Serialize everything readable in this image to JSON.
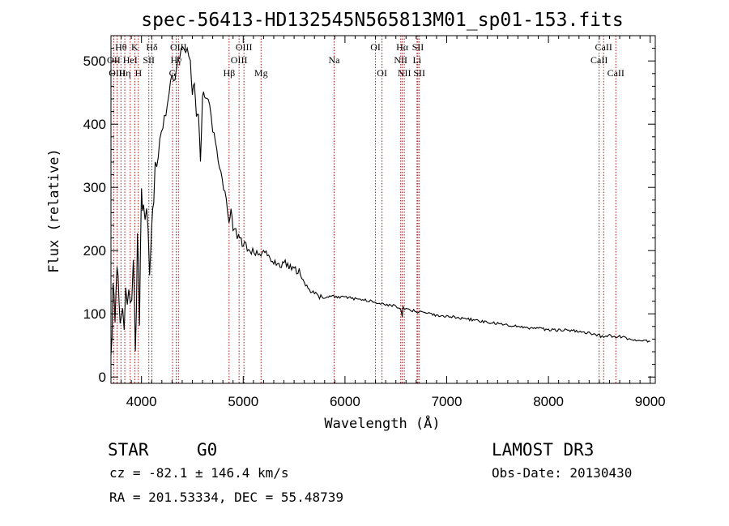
{
  "chart_data": {
    "type": "line",
    "title": "spec-56413-HD132545N565813M01_sp01-153.fits",
    "xlabel": "Wavelength (Å)",
    "ylabel": "Flux (relative)",
    "xlim": [
      3700,
      9050
    ],
    "ylim": [
      -10,
      540
    ],
    "xticks": [
      4000,
      5000,
      6000,
      7000,
      8000,
      9000
    ],
    "yticks": [
      0,
      100,
      200,
      300,
      400,
      500
    ],
    "series": [
      {
        "name": "flux",
        "x": [
          3700,
          3720,
          3740,
          3760,
          3780,
          3800,
          3830,
          3860,
          3890,
          3920,
          3940,
          3960,
          3980,
          4000,
          4020,
          4050,
          4080,
          4100,
          4120,
          4150,
          4180,
          4210,
          4240,
          4270,
          4300,
          4330,
          4360,
          4390,
          4420,
          4450,
          4480,
          4500,
          4520,
          4540,
          4560,
          4580,
          4600,
          4620,
          4640,
          4670,
          4700,
          4740,
          4780,
          4820,
          4860,
          4880,
          4900,
          4940,
          4980,
          5000,
          5040,
          5080,
          5120,
          5160,
          5200,
          5250,
          5300,
          5350,
          5400,
          5450,
          5500,
          5550,
          5600,
          5650,
          5700,
          5750,
          5800,
          5850,
          5900,
          5950,
          6000,
          6100,
          6200,
          6300,
          6400,
          6500,
          6550,
          6563,
          6570,
          6600,
          6700,
          6800,
          6900,
          7000,
          7200,
          7400,
          7600,
          7800,
          8000,
          8200,
          8400,
          8500,
          8542,
          8600,
          8662,
          8700,
          8800,
          8900,
          9000
        ],
        "y": [
          20,
          150,
          60,
          170,
          100,
          120,
          90,
          140,
          110,
          160,
          40,
          200,
          90,
          280,
          295,
          240,
          180,
          220,
          300,
          330,
          370,
          395,
          420,
          450,
          480,
          470,
          500,
          520,
          515,
          520,
          500,
          450,
          460,
          410,
          420,
          340,
          450,
          440,
          440,
          425,
          390,
          360,
          320,
          290,
          250,
          265,
          235,
          225,
          215,
          212,
          205,
          200,
          195,
          192,
          200,
          188,
          185,
          178,
          180,
          175,
          170,
          165,
          150,
          140,
          132,
          128,
          125,
          128,
          127,
          126,
          126,
          124,
          122,
          118,
          115,
          112,
          108,
          95,
          110,
          108,
          104,
          101,
          98,
          96,
          92,
          87,
          82,
          78,
          75,
          74,
          70,
          66,
          62,
          66,
          63,
          64,
          60,
          58,
          56
        ]
      }
    ],
    "spectral_lines": [
      {
        "label": "Hθ",
        "x": 3798,
        "row": 0
      },
      {
        "label": "OII",
        "x": 3727,
        "row": 1
      },
      {
        "label": "OIII",
        "x": 3760,
        "row": 2
      },
      {
        "label": "Hη",
        "x": 3836,
        "row": 2
      },
      {
        "label": "K",
        "x": 3934,
        "row": 0
      },
      {
        "label": "HeI",
        "x": 3889,
        "row": 1
      },
      {
        "label": "H",
        "x": 3969,
        "row": 2
      },
      {
        "label": "SII",
        "x": 4072,
        "row": 1
      },
      {
        "label": "Hδ",
        "x": 4102,
        "row": 0
      },
      {
        "label": "OIII",
        "x": 4363,
        "row": 0
      },
      {
        "label": "Hγ",
        "x": 4341,
        "row": 1
      },
      {
        "label": "G",
        "x": 4305,
        "row": 2
      },
      {
        "label": "Hβ",
        "x": 4861,
        "row": 2
      },
      {
        "label": "OIII",
        "x": 5007,
        "row": 0
      },
      {
        "label": "OIII",
        "x": 4959,
        "row": 1
      },
      {
        "label": "Mg",
        "x": 5175,
        "row": 2
      },
      {
        "label": "Na",
        "x": 5893,
        "row": 1
      },
      {
        "label": "OI",
        "x": 6300,
        "row": 0
      },
      {
        "label": "OI",
        "x": 6364,
        "row": 2
      },
      {
        "label": "Hα",
        "x": 6563,
        "row": 0
      },
      {
        "label": "NII",
        "x": 6548,
        "row": 1
      },
      {
        "label": "NII",
        "x": 6583,
        "row": 2
      },
      {
        "label": "SII",
        "x": 6717,
        "row": 0
      },
      {
        "label": "Li",
        "x": 6708,
        "row": 1
      },
      {
        "label": "SII",
        "x": 6731,
        "row": 2
      },
      {
        "label": "CaII",
        "x": 8542,
        "row": 0
      },
      {
        "label": "CaII",
        "x": 8498,
        "row": 1
      },
      {
        "label": "CaII",
        "x": 8662,
        "row": 2
      }
    ]
  },
  "info": {
    "class": "STAR",
    "subclass": "G0",
    "survey": "LAMOST DR3",
    "cz": "cz = -82.1 ± 146.4 km/s",
    "obs_date": "Obs-Date: 20130430",
    "coords": "RA = 201.53334, DEC =  55.48739"
  },
  "colors": {
    "spectrum": "#000000",
    "line_marker": "#a01818",
    "axes": "#000000"
  }
}
